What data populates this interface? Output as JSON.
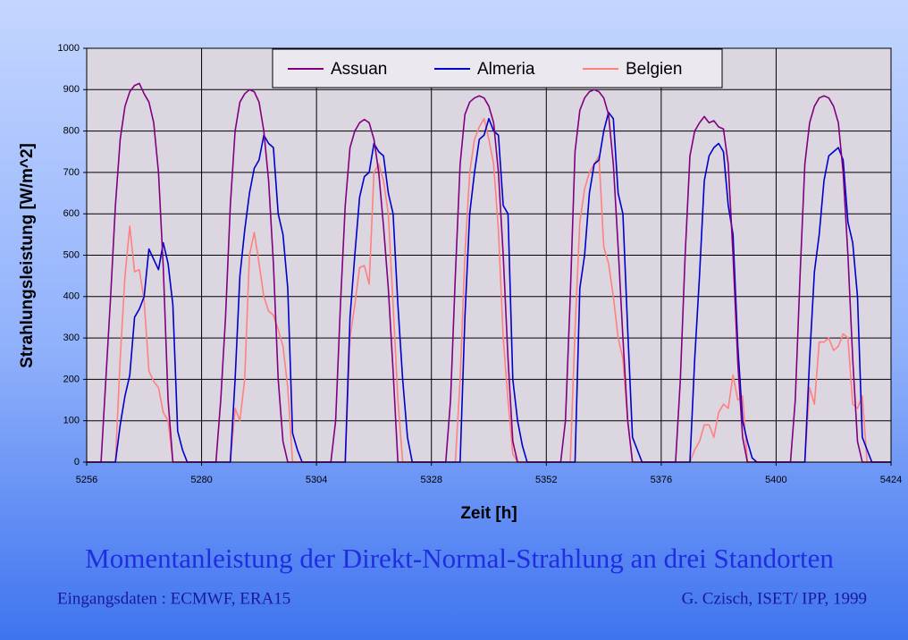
{
  "chart_data": {
    "type": "line",
    "title": "Momentanleistung der Direkt-Normal-Strahlung an drei Standorten",
    "footer": [
      "Eingangsdaten : ECMWF, ERA15",
      "G. Czisch, ISET/ IPP, 1999"
    ],
    "xlabel": "Zeit [h]",
    "ylabel": "Strahlungsleistung [W/m^2]",
    "xlim": [
      5256,
      5424
    ],
    "xticks": [
      5256,
      5280,
      5304,
      5328,
      5352,
      5376,
      5400,
      5424
    ],
    "ylim": [
      0,
      1000
    ],
    "yticks": [
      0,
      100,
      200,
      300,
      400,
      500,
      600,
      700,
      800,
      900,
      1000
    ],
    "grid": true,
    "legend": "top",
    "x": [
      5256,
      5257,
      5258,
      5259,
      5260,
      5261,
      5262,
      5263,
      5264,
      5265,
      5266,
      5267,
      5268,
      5269,
      5270,
      5271,
      5272,
      5273,
      5274,
      5275,
      5276,
      5277,
      5278,
      5279,
      5280,
      5281,
      5282,
      5283,
      5284,
      5285,
      5286,
      5287,
      5288,
      5289,
      5290,
      5291,
      5292,
      5293,
      5294,
      5295,
      5296,
      5297,
      5298,
      5299,
      5300,
      5301,
      5302,
      5303,
      5304,
      5305,
      5306,
      5307,
      5308,
      5309,
      5310,
      5311,
      5312,
      5313,
      5314,
      5315,
      5316,
      5317,
      5318,
      5319,
      5320,
      5321,
      5322,
      5323,
      5324,
      5325,
      5326,
      5327,
      5328,
      5329,
      5330,
      5331,
      5332,
      5333,
      5334,
      5335,
      5336,
      5337,
      5338,
      5339,
      5340,
      5341,
      5342,
      5343,
      5344,
      5345,
      5346,
      5347,
      5348,
      5349,
      5350,
      5351,
      5352,
      5353,
      5354,
      5355,
      5356,
      5357,
      5358,
      5359,
      5360,
      5361,
      5362,
      5363,
      5364,
      5365,
      5366,
      5367,
      5368,
      5369,
      5370,
      5371,
      5372,
      5373,
      5374,
      5375,
      5376,
      5377,
      5378,
      5379,
      5380,
      5381,
      5382,
      5383,
      5384,
      5385,
      5386,
      5387,
      5388,
      5389,
      5390,
      5391,
      5392,
      5393,
      5394,
      5395,
      5396,
      5397,
      5398,
      5399,
      5400,
      5401,
      5402,
      5403,
      5404,
      5405,
      5406,
      5407,
      5408,
      5409,
      5410,
      5411,
      5412,
      5413,
      5414,
      5415,
      5416,
      5417,
      5418,
      5419,
      5420,
      5421,
      5422,
      5423,
      5424
    ],
    "series": [
      {
        "name": "Assuan",
        "color": "#800080",
        "values": [
          0,
          0,
          0,
          0,
          200,
          400,
          620,
          780,
          860,
          895,
          910,
          915,
          890,
          870,
          820,
          700,
          470,
          150,
          0,
          0,
          0,
          0,
          0,
          0,
          0,
          0,
          0,
          0,
          150,
          350,
          620,
          800,
          870,
          890,
          900,
          895,
          870,
          800,
          680,
          480,
          200,
          50,
          0,
          0,
          0,
          0,
          0,
          0,
          0,
          0,
          0,
          0,
          100,
          380,
          620,
          760,
          800,
          820,
          828,
          820,
          780,
          700,
          570,
          420,
          220,
          0,
          0,
          0,
          0,
          0,
          0,
          0,
          0,
          0,
          0,
          0,
          150,
          450,
          720,
          840,
          870,
          880,
          885,
          880,
          860,
          820,
          700,
          500,
          250,
          50,
          0,
          0,
          0,
          0,
          0,
          0,
          0,
          0,
          0,
          0,
          100,
          400,
          750,
          850,
          880,
          895,
          900,
          895,
          880,
          840,
          720,
          520,
          300,
          100,
          0,
          0,
          0,
          0,
          0,
          0,
          0,
          0,
          0,
          0,
          200,
          500,
          740,
          800,
          820,
          835,
          820,
          825,
          810,
          805,
          720,
          500,
          240,
          60,
          0,
          0,
          0,
          0,
          0,
          0,
          0,
          0,
          0,
          0,
          150,
          450,
          720,
          820,
          860,
          880,
          885,
          880,
          860,
          820,
          700,
          500,
          250,
          50,
          0,
          0,
          0,
          0,
          0,
          0,
          0
        ]
      },
      {
        "name": "Almeria",
        "color": "#0000cc",
        "values": [
          0,
          0,
          0,
          0,
          0,
          0,
          0,
          90,
          160,
          210,
          350,
          370,
          400,
          515,
          490,
          465,
          530,
          480,
          380,
          75,
          30,
          0,
          0,
          0,
          0,
          0,
          0,
          0,
          0,
          0,
          0,
          200,
          450,
          560,
          650,
          710,
          730,
          790,
          770,
          760,
          600,
          550,
          420,
          70,
          30,
          0,
          0,
          0,
          0,
          0,
          0,
          0,
          0,
          0,
          0,
          350,
          500,
          640,
          690,
          700,
          770,
          750,
          740,
          650,
          600,
          380,
          200,
          60,
          0,
          0,
          0,
          0,
          0,
          0,
          0,
          0,
          0,
          0,
          0,
          350,
          600,
          700,
          780,
          790,
          830,
          800,
          790,
          620,
          600,
          200,
          100,
          40,
          0,
          0,
          0,
          0,
          0,
          0,
          0,
          0,
          0,
          0,
          0,
          420,
          500,
          650,
          720,
          730,
          800,
          845,
          830,
          650,
          600,
          320,
          60,
          30,
          0,
          0,
          0,
          0,
          0,
          0,
          0,
          0,
          0,
          0,
          0,
          250,
          450,
          680,
          740,
          760,
          770,
          750,
          620,
          550,
          280,
          100,
          50,
          10,
          0,
          0,
          0,
          0,
          0,
          0,
          0,
          0,
          0,
          0,
          0,
          250,
          460,
          550,
          680,
          740,
          750,
          760,
          730,
          580,
          530,
          400,
          60,
          30,
          0,
          0,
          0,
          0,
          0
        ]
      },
      {
        "name": "Belgien",
        "color": "#ff8080",
        "values": [
          0,
          0,
          0,
          0,
          0,
          0,
          0,
          250,
          450,
          570,
          460,
          465,
          390,
          220,
          195,
          180,
          120,
          100,
          0,
          0,
          0,
          0,
          0,
          0,
          0,
          0,
          0,
          0,
          0,
          0,
          0,
          130,
          100,
          200,
          500,
          555,
          480,
          400,
          365,
          355,
          320,
          280,
          180,
          0,
          0,
          0,
          0,
          0,
          0,
          0,
          0,
          0,
          0,
          0,
          0,
          300,
          380,
          470,
          475,
          430,
          700,
          720,
          680,
          600,
          380,
          150,
          0,
          0,
          0,
          0,
          0,
          0,
          0,
          0,
          0,
          0,
          0,
          0,
          200,
          500,
          700,
          780,
          810,
          830,
          780,
          720,
          560,
          300,
          150,
          20,
          0,
          0,
          0,
          0,
          0,
          0,
          0,
          0,
          0,
          0,
          0,
          0,
          320,
          580,
          660,
          700,
          720,
          740,
          520,
          480,
          400,
          300,
          250,
          100,
          0,
          0,
          0,
          0,
          0,
          0,
          0,
          0,
          0,
          0,
          0,
          0,
          0,
          30,
          50,
          90,
          90,
          60,
          120,
          140,
          130,
          210,
          150,
          160,
          0,
          0,
          0,
          0,
          0,
          0,
          0,
          0,
          0,
          0,
          0,
          0,
          0,
          180,
          140,
          290,
          290,
          300,
          270,
          280,
          310,
          300,
          140,
          130,
          160,
          0,
          0,
          0,
          0,
          0,
          0
        ]
      }
    ]
  }
}
